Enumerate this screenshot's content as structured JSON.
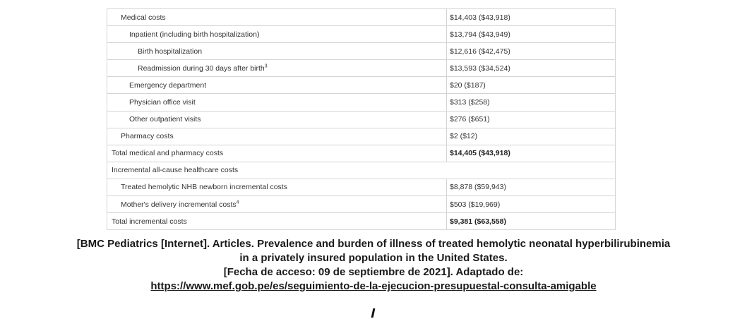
{
  "table": {
    "rows": [
      {
        "label": "Medical costs",
        "value": "$14,403 ($43,918)"
      },
      {
        "label": "Inpatient (including birth hospitalization)",
        "value": "$13,794 ($43,949)"
      },
      {
        "label": "Birth hospitalization",
        "value": "$12,616 ($42,475)"
      },
      {
        "label": "Readmission during 30 days after birth",
        "sup": "3",
        "value": "$13,593 ($34,524)"
      },
      {
        "label": "Emergency department",
        "value": "$20 ($187)"
      },
      {
        "label": "Physician office visit",
        "value": "$313 ($258)"
      },
      {
        "label": "Other outpatient visits",
        "value": "$276 ($651)"
      },
      {
        "label": "Pharmacy costs",
        "value": "$2 ($12)"
      },
      {
        "label": "Total medical and pharmacy costs",
        "value": "$14,405 ($43,918)"
      },
      {
        "label": "Incremental all-cause healthcare costs"
      },
      {
        "label": "Treated hemolytic NHB newborn incremental costs",
        "value": "$8,878 ($59,943)"
      },
      {
        "label": "Mother's delivery incremental costs",
        "sup": "4",
        "value": "$503 ($19,969)"
      },
      {
        "label": "Total incremental costs",
        "value": "$9,381 ($63,558)"
      }
    ]
  },
  "citation": {
    "line1": "[BMC Pediatrics [Internet]. Articles. Prevalence and burden of illness of treated hemolytic neonatal hyperbilirubinemia",
    "line2": "in a privately insured population in the United States.",
    "line3": "[Fecha de acceso: 09 de septiembre de 2021]. Adaptado de:",
    "link": "https://www.mef.gob.pe/es/seguimiento-de-la-ejecucion-presupuestal-consulta-amigable"
  }
}
